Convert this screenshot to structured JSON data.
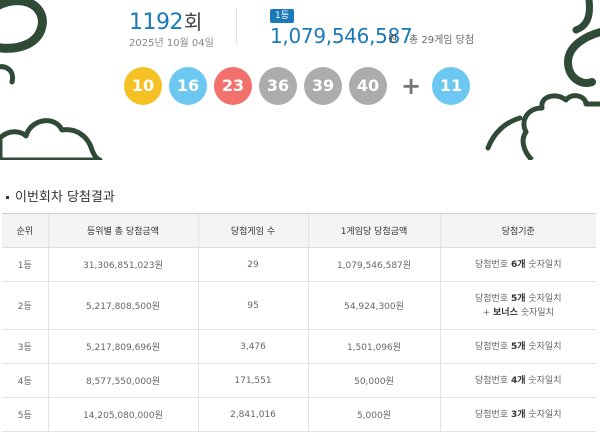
{
  "draw": {
    "round_number": "1192",
    "round_suffix": "회",
    "date": "2025년 10월 04일",
    "first_prize_badge": "1등",
    "first_prize_amount": "1,079,546,587",
    "first_prize_unit": "원",
    "first_prize_games": "총 29게임 당첨",
    "numbers": [
      {
        "value": "10",
        "color": "#f5c124"
      },
      {
        "value": "16",
        "color": "#6cc8f0"
      },
      {
        "value": "23",
        "color": "#f2716d"
      },
      {
        "value": "36",
        "color": "#acacac"
      },
      {
        "value": "39",
        "color": "#acacac"
      },
      {
        "value": "40",
        "color": "#acacac"
      }
    ],
    "plus_symbol": "+",
    "bonus": {
      "value": "11",
      "color": "#6cc8f0"
    }
  },
  "results": {
    "section_title": "이번회차 당첨결과",
    "headers": [
      "순위",
      "등위별 총 당첨금액",
      "당첨게임 수",
      "1게임당 당첨금액",
      "당첨기준"
    ],
    "rows": [
      {
        "rank": "1등",
        "total": "31,306,851,023원",
        "games": "29",
        "per_game": "1,079,546,587원",
        "crit_pre": "당첨번호 ",
        "crit_bold": "6개",
        "crit_post": " 숫자일치",
        "crit_extra_pre": "",
        "crit_extra_bold": "",
        "crit_extra_post": ""
      },
      {
        "rank": "2등",
        "total": "5,217,808,500원",
        "games": "95",
        "per_game": "54,924,300원",
        "crit_pre": "당첨번호 ",
        "crit_bold": "5개",
        "crit_post": " 숫자일치",
        "crit_extra_pre": "+ ",
        "crit_extra_bold": "보너스",
        "crit_extra_post": " 숫자일치"
      },
      {
        "rank": "3등",
        "total": "5,217,809,696원",
        "games": "3,476",
        "per_game": "1,501,096원",
        "crit_pre": "당첨번호 ",
        "crit_bold": "5개",
        "crit_post": " 숫자일치",
        "crit_extra_pre": "",
        "crit_extra_bold": "",
        "crit_extra_post": ""
      },
      {
        "rank": "4등",
        "total": "8,577,550,000원",
        "games": "171,551",
        "per_game": "50,000원",
        "crit_pre": "당첨번호 ",
        "crit_bold": "4개",
        "crit_post": " 숫자일치",
        "crit_extra_pre": "",
        "crit_extra_bold": "",
        "crit_extra_post": ""
      },
      {
        "rank": "5등",
        "total": "14,205,080,000원",
        "games": "2,841,016",
        "per_game": "5,000원",
        "crit_pre": "당첨번호 ",
        "crit_bold": "3개",
        "crit_post": " 숫자일치",
        "crit_extra_pre": "",
        "crit_extra_bold": "",
        "crit_extra_post": ""
      }
    ]
  },
  "theme": {
    "accent": "#1a7ab8",
    "decoration": "#2f4a36"
  }
}
